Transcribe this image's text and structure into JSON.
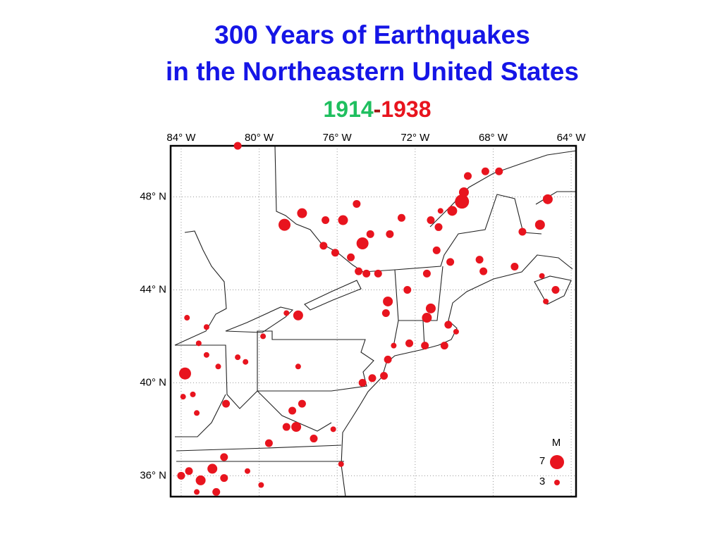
{
  "map": {
    "title_lines": [
      "300 Years of Earthquakes",
      "in the Northeastern United States"
    ],
    "title_color": "#1515e6",
    "period": [
      {
        "text": "1914",
        "color": "#1fbf5f"
      },
      {
        "text": "-",
        "color": "#a01010"
      },
      {
        "text": "1938",
        "color": "#e8141e"
      }
    ],
    "xlim": [
      -84.54,
      -63.75
    ],
    "ylim": [
      35.1,
      50.2
    ],
    "xticks": [
      {
        "value": -84,
        "label": "84° W"
      },
      {
        "value": -80,
        "label": "80° W"
      },
      {
        "value": -76,
        "label": "76° W"
      },
      {
        "value": -72,
        "label": "72° W"
      },
      {
        "value": -68,
        "label": "68° W"
      },
      {
        "value": -64,
        "label": "64° W"
      }
    ],
    "yticks": [
      {
        "value": 48,
        "label": "48° N"
      },
      {
        "value": 44,
        "label": "44° N"
      },
      {
        "value": 40,
        "label": "40° N"
      },
      {
        "value": 36,
        "label": "36° N"
      }
    ],
    "grid": true,
    "point_color": "#e8141e",
    "legend": {
      "title": "M",
      "magnitudes": [
        7,
        3
      ]
    },
    "points": [
      {
        "lon": -81.1,
        "lat": 50.2,
        "mag": 4
      },
      {
        "lon": -78.7,
        "lat": 46.8,
        "mag": 6
      },
      {
        "lon": -77.8,
        "lat": 47.3,
        "mag": 5
      },
      {
        "lon": -76.6,
        "lat": 47.0,
        "mag": 4
      },
      {
        "lon": -75.7,
        "lat": 47.0,
        "mag": 5
      },
      {
        "lon": -75.0,
        "lat": 47.7,
        "mag": 4
      },
      {
        "lon": -74.7,
        "lat": 46.0,
        "mag": 6
      },
      {
        "lon": -74.3,
        "lat": 46.4,
        "mag": 4
      },
      {
        "lon": -73.3,
        "lat": 46.4,
        "mag": 4
      },
      {
        "lon": -72.7,
        "lat": 47.1,
        "mag": 4
      },
      {
        "lon": -71.2,
        "lat": 47.0,
        "mag": 4
      },
      {
        "lon": -70.1,
        "lat": 47.4,
        "mag": 5
      },
      {
        "lon": -69.6,
        "lat": 47.8,
        "mag": 7
      },
      {
        "lon": -69.3,
        "lat": 48.9,
        "mag": 4
      },
      {
        "lon": -68.4,
        "lat": 49.1,
        "mag": 4
      },
      {
        "lon": -67.7,
        "lat": 49.1,
        "mag": 4
      },
      {
        "lon": -65.2,
        "lat": 47.9,
        "mag": 5
      },
      {
        "lon": -65.6,
        "lat": 46.8,
        "mag": 5
      },
      {
        "lon": -66.5,
        "lat": 46.5,
        "mag": 4
      },
      {
        "lon": -70.9,
        "lat": 45.7,
        "mag": 4
      },
      {
        "lon": -70.2,
        "lat": 45.2,
        "mag": 4
      },
      {
        "lon": -68.7,
        "lat": 45.3,
        "mag": 4
      },
      {
        "lon": -68.5,
        "lat": 44.8,
        "mag": 4
      },
      {
        "lon": -66.9,
        "lat": 45.0,
        "mag": 4
      },
      {
        "lon": -64.8,
        "lat": 44.0,
        "mag": 4
      },
      {
        "lon": -65.5,
        "lat": 44.6,
        "mag": 3
      },
      {
        "lon": -65.3,
        "lat": 43.5,
        "mag": 3
      },
      {
        "lon": -76.7,
        "lat": 45.9,
        "mag": 4
      },
      {
        "lon": -76.1,
        "lat": 45.6,
        "mag": 4
      },
      {
        "lon": -75.3,
        "lat": 45.4,
        "mag": 4
      },
      {
        "lon": -74.9,
        "lat": 44.8,
        "mag": 4
      },
      {
        "lon": -74.5,
        "lat": 44.7,
        "mag": 4
      },
      {
        "lon": -73.9,
        "lat": 44.7,
        "mag": 4
      },
      {
        "lon": -73.4,
        "lat": 43.5,
        "mag": 5
      },
      {
        "lon": -73.5,
        "lat": 43.0,
        "mag": 4
      },
      {
        "lon": -72.4,
        "lat": 44.0,
        "mag": 4
      },
      {
        "lon": -71.4,
        "lat": 44.7,
        "mag": 4
      },
      {
        "lon": -71.2,
        "lat": 43.2,
        "mag": 5
      },
      {
        "lon": -71.4,
        "lat": 42.8,
        "mag": 5
      },
      {
        "lon": -70.3,
        "lat": 42.5,
        "mag": 4
      },
      {
        "lon": -69.9,
        "lat": 42.2,
        "mag": 3
      },
      {
        "lon": -70.5,
        "lat": 41.6,
        "mag": 4
      },
      {
        "lon": -71.5,
        "lat": 41.6,
        "mag": 4
      },
      {
        "lon": -72.3,
        "lat": 41.7,
        "mag": 4
      },
      {
        "lon": -73.1,
        "lat": 41.6,
        "mag": 3
      },
      {
        "lon": -73.4,
        "lat": 41.0,
        "mag": 4
      },
      {
        "lon": -73.6,
        "lat": 40.3,
        "mag": 4
      },
      {
        "lon": -74.2,
        "lat": 40.2,
        "mag": 4
      },
      {
        "lon": -74.7,
        "lat": 40.0,
        "mag": 4
      },
      {
        "lon": -78.0,
        "lat": 42.9,
        "mag": 5
      },
      {
        "lon": -78.6,
        "lat": 43.0,
        "mag": 3
      },
      {
        "lon": -79.8,
        "lat": 42.0,
        "mag": 3
      },
      {
        "lon": -78.0,
        "lat": 40.7,
        "mag": 3
      },
      {
        "lon": -83.8,
        "lat": 40.4,
        "mag": 6
      },
      {
        "lon": -83.1,
        "lat": 41.7,
        "mag": 3
      },
      {
        "lon": -82.7,
        "lat": 41.2,
        "mag": 3
      },
      {
        "lon": -82.1,
        "lat": 40.7,
        "mag": 3
      },
      {
        "lon": -82.7,
        "lat": 42.4,
        "mag": 3
      },
      {
        "lon": -83.7,
        "lat": 42.8,
        "mag": 3
      },
      {
        "lon": -81.1,
        "lat": 41.1,
        "mag": 3
      },
      {
        "lon": -80.7,
        "lat": 40.9,
        "mag": 3
      },
      {
        "lon": -81.7,
        "lat": 39.1,
        "mag": 4
      },
      {
        "lon": -83.4,
        "lat": 39.5,
        "mag": 3
      },
      {
        "lon": -83.9,
        "lat": 39.4,
        "mag": 3
      },
      {
        "lon": -83.2,
        "lat": 38.7,
        "mag": 3
      },
      {
        "lon": -78.3,
        "lat": 38.8,
        "mag": 4
      },
      {
        "lon": -78.1,
        "lat": 38.1,
        "mag": 5
      },
      {
        "lon": -77.8,
        "lat": 39.1,
        "mag": 4
      },
      {
        "lon": -78.6,
        "lat": 38.1,
        "mag": 4
      },
      {
        "lon": -79.5,
        "lat": 37.4,
        "mag": 4
      },
      {
        "lon": -77.2,
        "lat": 37.6,
        "mag": 4
      },
      {
        "lon": -76.2,
        "lat": 38.0,
        "mag": 3
      },
      {
        "lon": -75.8,
        "lat": 36.5,
        "mag": 3
      },
      {
        "lon": -81.8,
        "lat": 36.8,
        "mag": 4
      },
      {
        "lon": -82.4,
        "lat": 36.3,
        "mag": 5
      },
      {
        "lon": -83.0,
        "lat": 35.8,
        "mag": 5
      },
      {
        "lon": -83.6,
        "lat": 36.2,
        "mag": 4
      },
      {
        "lon": -84.0,
        "lat": 36.0,
        "mag": 4
      },
      {
        "lon": -81.8,
        "lat": 35.9,
        "mag": 4
      },
      {
        "lon": -80.6,
        "lat": 36.2,
        "mag": 3
      },
      {
        "lon": -79.9,
        "lat": 35.6,
        "mag": 3
      },
      {
        "lon": -82.2,
        "lat": 35.3,
        "mag": 4
      },
      {
        "lon": -83.2,
        "lat": 35.3,
        "mag": 3
      },
      {
        "lon": -69.5,
        "lat": 48.2,
        "mag": 5
      },
      {
        "lon": -70.7,
        "lat": 47.4,
        "mag": 3
      },
      {
        "lon": -70.8,
        "lat": 46.7,
        "mag": 4
      }
    ]
  }
}
